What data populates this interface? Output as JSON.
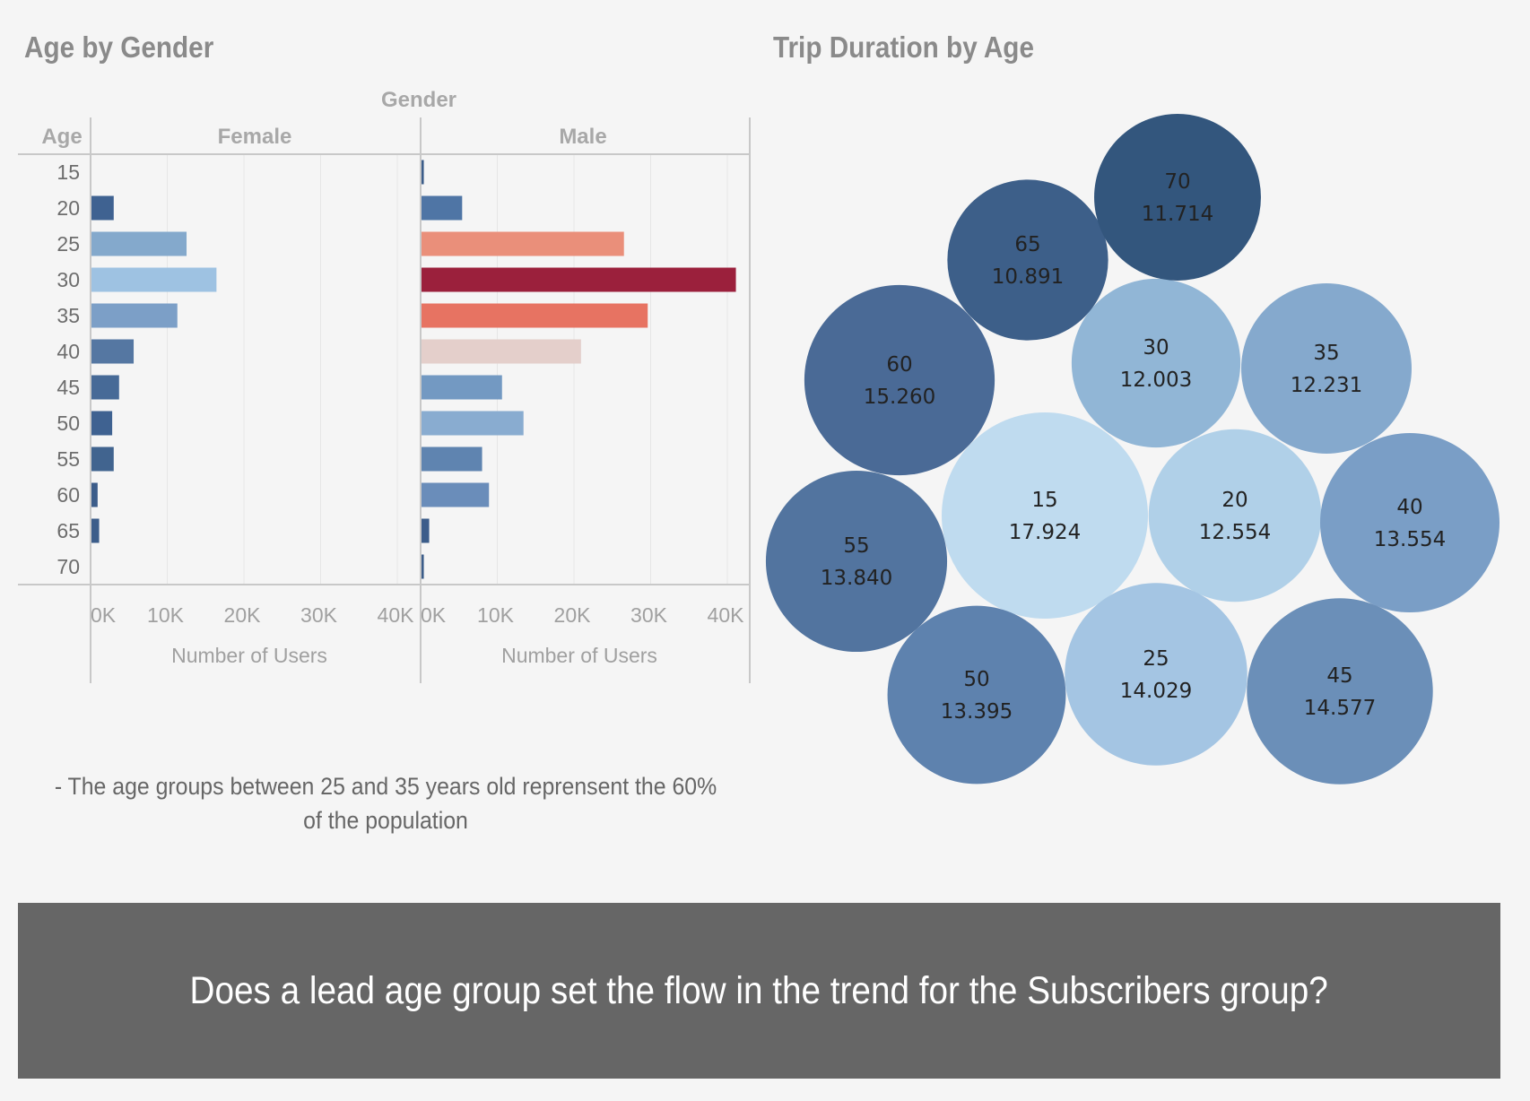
{
  "chart_data": [
    {
      "type": "bar",
      "title": "Age by Gender",
      "orientation": "horizontal",
      "facet_header": "Gender",
      "category_header": "Age",
      "categories": [
        "15",
        "20",
        "25",
        "30",
        "35",
        "40",
        "45",
        "50",
        "55",
        "60",
        "65",
        "70"
      ],
      "xlabel": "Number of Users",
      "xlim": [
        0,
        43000
      ],
      "x_ticks": [
        "0K",
        "10K",
        "20K",
        "30K",
        "40K"
      ],
      "x_tick_values": [
        0,
        10000,
        20000,
        30000,
        40000
      ],
      "series": [
        {
          "name": "Female",
          "values": [
            0,
            2900,
            12400,
            16300,
            11200,
            5500,
            3600,
            2700,
            2900,
            800,
            1000,
            0
          ],
          "colors": [
            "#4a6a93",
            "#3f6291",
            "#84a9cc",
            "#9ec2e2",
            "#7c9fc7",
            "#5577a2",
            "#476a97",
            "#3f6291",
            "#41648f",
            "#3c5d8a",
            "#3c5d8a",
            "#3c5d8a"
          ]
        },
        {
          "name": "Male",
          "values": [
            300,
            5300,
            26400,
            41000,
            29500,
            20800,
            10500,
            13300,
            7900,
            8800,
            1000,
            300
          ],
          "colors": [
            "#3c5d8a",
            "#4f75a5",
            "#ea8f7a",
            "#9b203c",
            "#e77362",
            "#e4cfcb",
            "#7399c2",
            "#89acd0",
            "#5f84b0",
            "#6a8dba",
            "#3c5d8a",
            "#3c5d8a"
          ]
        }
      ],
      "grid": true
    },
    {
      "type": "bubble",
      "title": "Trip Duration by Age",
      "labels": [
        "15",
        "20",
        "25",
        "30",
        "35",
        "40",
        "45",
        "50",
        "55",
        "60",
        "65",
        "70"
      ],
      "values": [
        17.924,
        12.554,
        14.029,
        12.003,
        12.231,
        13.554,
        14.577,
        13.395,
        13.84,
        15.26,
        10.891,
        11.714
      ],
      "value_labels": [
        "17.924",
        "12.554",
        "14.029",
        "12.003",
        "12.231",
        "13.554",
        "14.577",
        "13.395",
        "13.840",
        "15.260",
        "10.891",
        "11.714"
      ],
      "colors": [
        "#bfdbef",
        "#b0d0e8",
        "#a4c5e3",
        "#91b6d6",
        "#85a9cd",
        "#7a9ec6",
        "#6b8fb8",
        "#5e82ae",
        "#52749f",
        "#4a6a96",
        "#3d5f89",
        "#33567d"
      ]
    }
  ],
  "insight": "- The age groups between 25 and 35 years old reprensent the 60% of the population",
  "banner": "Does a lead age group set the flow in the trend for the Subscribers group?"
}
